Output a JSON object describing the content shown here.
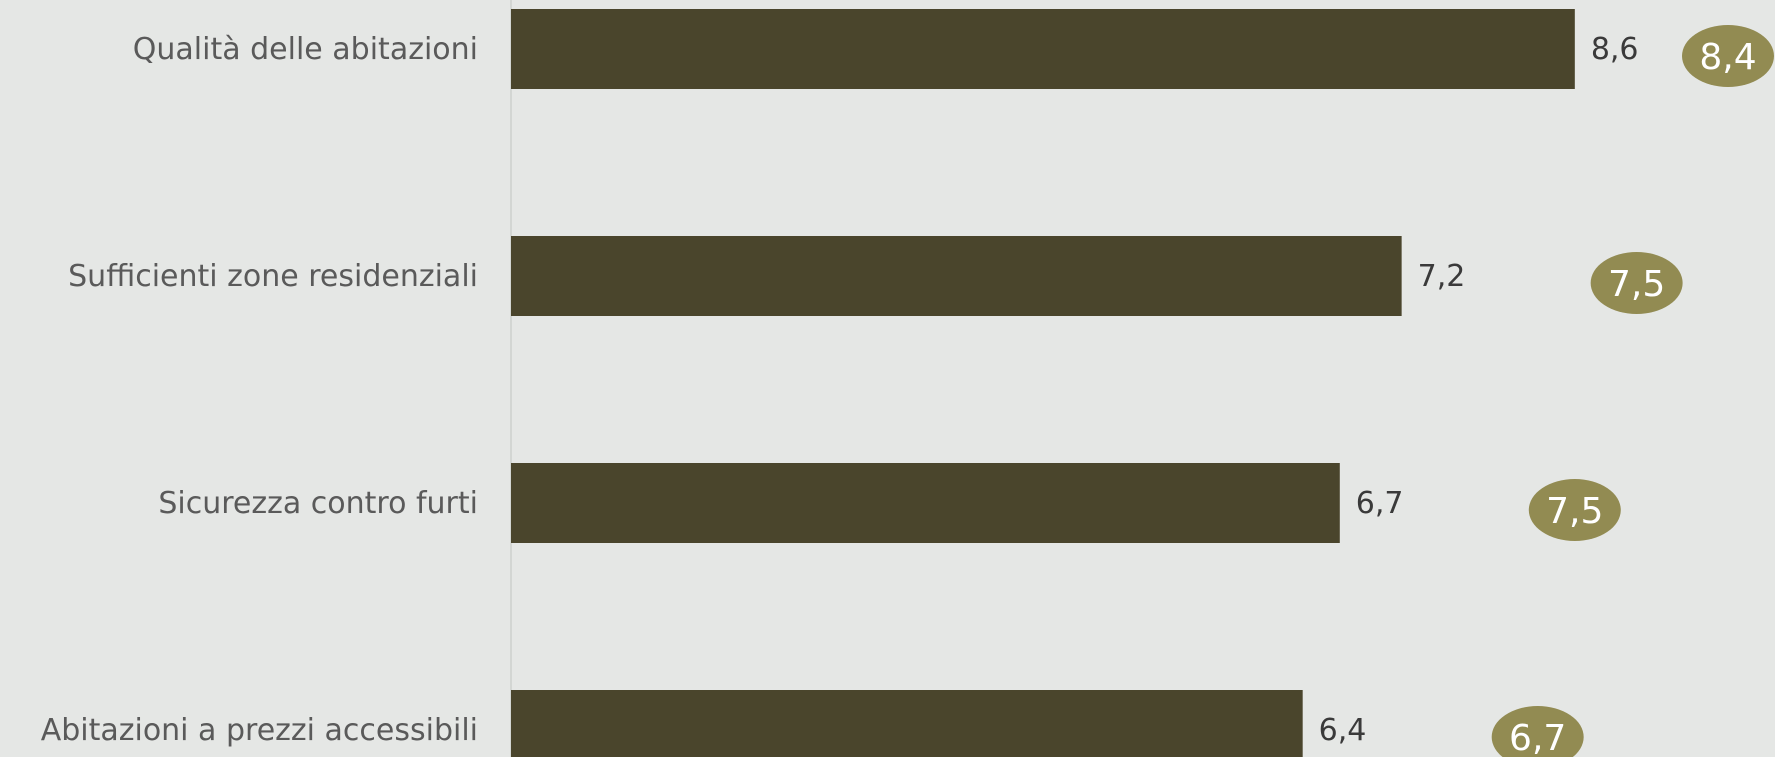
{
  "chart_data": {
    "type": "bar",
    "orientation": "horizontal",
    "categories": [
      "Qualità delle abitazioni",
      "Sufficienti zone residenziali",
      "Sicurezza contro furti",
      "Abitazioni a prezzi accessibili"
    ],
    "values": [
      8.6,
      7.2,
      6.7,
      6.4
    ],
    "value_labels": [
      "8,6",
      "7,2",
      "6,7",
      "6,4"
    ],
    "comparison_values": [
      8.4,
      7.5,
      7.5,
      6.7
    ],
    "comparison_labels": [
      "8,4",
      "7,5",
      "7,5",
      "6,7"
    ],
    "title": "",
    "xlabel": "",
    "ylabel": "",
    "grid": false,
    "colors": {
      "background": "#e5e7e5",
      "bar": "#4a452c",
      "bubble": "#928b52",
      "bubble_text": "#ffffff",
      "axis": "#d3d6d3"
    }
  }
}
